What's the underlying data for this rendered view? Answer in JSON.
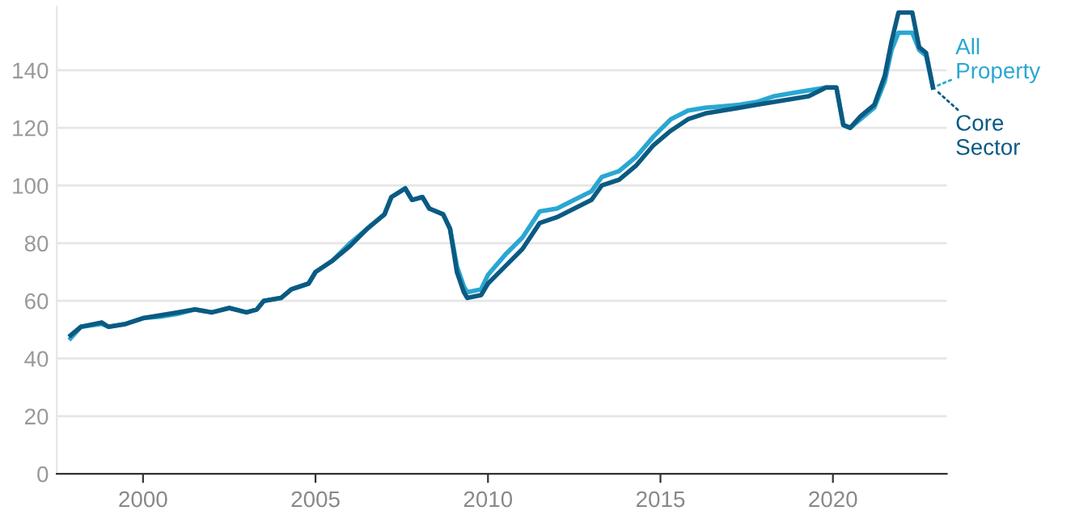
{
  "chart_data": {
    "type": "line",
    "xlim": [
      1997.5,
      2023.3
    ],
    "xticks": [
      2000,
      2005,
      2010,
      2015,
      2020
    ],
    "ylim": [
      0,
      162
    ],
    "yticks": [
      0,
      20,
      40,
      60,
      80,
      100,
      120,
      140
    ],
    "grid": "y",
    "legend": "right",
    "line_style": "solid",
    "series": [
      {
        "name": "All Property",
        "color": "#2aa7d2",
        "x": [
          1997.9,
          1998.2,
          1998.8,
          1999.0,
          1999.5,
          2000.0,
          2000.5,
          2001.0,
          2001.5,
          2002.0,
          2002.5,
          2003.0,
          2003.3,
          2003.5,
          2004.0,
          2004.3,
          2004.8,
          2005.0,
          2005.5,
          2006.0,
          2006.5,
          2007.0,
          2007.2,
          2007.6,
          2007.8,
          2008.1,
          2008.3,
          2008.7,
          2008.9,
          2009.1,
          2009.3,
          2009.4,
          2009.8,
          2010.0,
          2010.5,
          2011.0,
          2011.5,
          2012.0,
          2012.5,
          2013.0,
          2013.3,
          2013.8,
          2014.3,
          2014.8,
          2015.3,
          2015.8,
          2016.3,
          2016.8,
          2017.3,
          2017.8,
          2018.3,
          2018.8,
          2019.3,
          2019.8,
          2020.1,
          2020.3,
          2020.5,
          2020.8,
          2021.2,
          2021.5,
          2021.7,
          2021.9,
          2022.3,
          2022.5,
          2022.7,
          2022.9
        ],
        "values": [
          47,
          51,
          52,
          51,
          52,
          54,
          54.5,
          55.5,
          57,
          56,
          57.5,
          56,
          57,
          60,
          61,
          64,
          66,
          70,
          74,
          80,
          85,
          90,
          96,
          99,
          95,
          96,
          92,
          90,
          85,
          72,
          65,
          63,
          64,
          69,
          76,
          82,
          91,
          92,
          95,
          98,
          103,
          105,
          110,
          117,
          123,
          126,
          127,
          127.5,
          128,
          129,
          131,
          132,
          133,
          134,
          134,
          121,
          120,
          123,
          127,
          136,
          147,
          153,
          153,
          147,
          145,
          134
        ]
      },
      {
        "name": "Core Sector",
        "color": "#0b5a82",
        "x": [
          1997.9,
          1998.2,
          1998.8,
          1999.0,
          1999.5,
          2000.0,
          2000.5,
          2001.0,
          2001.5,
          2002.0,
          2002.5,
          2003.0,
          2003.3,
          2003.5,
          2004.0,
          2004.3,
          2004.8,
          2005.0,
          2005.5,
          2006.0,
          2006.5,
          2007.0,
          2007.2,
          2007.6,
          2007.8,
          2008.1,
          2008.3,
          2008.7,
          2008.9,
          2009.1,
          2009.3,
          2009.4,
          2009.8,
          2010.0,
          2010.5,
          2011.0,
          2011.5,
          2012.0,
          2012.5,
          2013.0,
          2013.3,
          2013.8,
          2014.3,
          2014.8,
          2015.3,
          2015.8,
          2016.3,
          2016.8,
          2017.3,
          2017.8,
          2018.3,
          2018.8,
          2019.3,
          2019.8,
          2020.1,
          2020.3,
          2020.5,
          2020.8,
          2021.2,
          2021.5,
          2021.7,
          2021.9,
          2022.3,
          2022.5,
          2022.7,
          2022.9
        ],
        "values": [
          48,
          51,
          52.5,
          51,
          52,
          54,
          55,
          56,
          57,
          56,
          57.5,
          56,
          57,
          60,
          61,
          64,
          66,
          70,
          74,
          79,
          85,
          90,
          96,
          99,
          95,
          96,
          92,
          90,
          85,
          70,
          63,
          61,
          62,
          66,
          72,
          78,
          87,
          89,
          92,
          95,
          100,
          102,
          107,
          114,
          119,
          123,
          125,
          126,
          127,
          128,
          129,
          130,
          131,
          134,
          134,
          121,
          120,
          124,
          128,
          138,
          150,
          160,
          160,
          148,
          146,
          134
        ]
      }
    ]
  }
}
